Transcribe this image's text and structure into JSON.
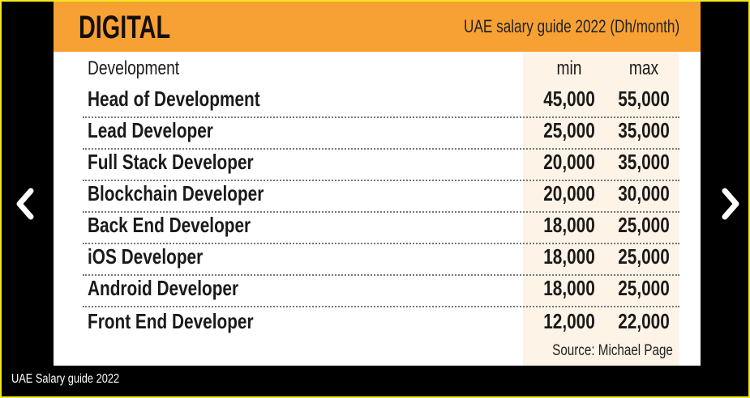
{
  "header": {
    "title": "DIGITAL",
    "subtitle": "UAE salary guide 2022 (Dh/month)"
  },
  "table": {
    "section": "Development",
    "col_min": "min",
    "col_max": "max",
    "rows": [
      {
        "role": "Head of Development",
        "min": "45,000",
        "max": "55,000"
      },
      {
        "role": "Lead Developer",
        "min": "25,000",
        "max": "35,000"
      },
      {
        "role": "Full Stack Developer",
        "min": "20,000",
        "max": "35,000"
      },
      {
        "role": "Blockchain Developer",
        "min": "20,000",
        "max": "30,000"
      },
      {
        "role": "Back End Developer",
        "min": "18,000",
        "max": "25,000"
      },
      {
        "role": "iOS Developer",
        "min": "18,000",
        "max": "25,000"
      },
      {
        "role": "Android Developer",
        "min": "18,000",
        "max": "25,000"
      },
      {
        "role": "Front End Developer",
        "min": "12,000",
        "max": "22,000"
      }
    ]
  },
  "source": "Source: Michael Page",
  "caption": "UAE Salary guide 2022"
}
